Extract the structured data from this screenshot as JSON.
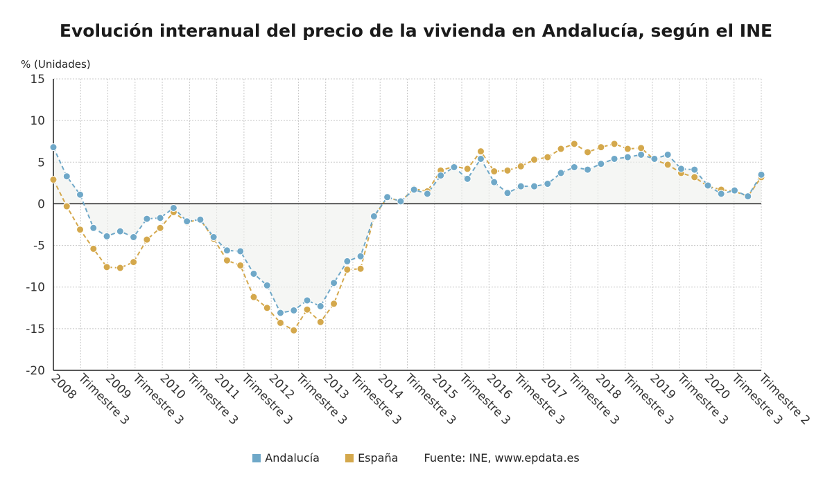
{
  "chart_data": {
    "type": "line",
    "title": "Evolución interanual del precio de la vivienda en Andalucía, según el INE",
    "ylabel": "% (Unidades)",
    "ylim": [
      -20,
      15
    ],
    "yticks": [
      15,
      10,
      5,
      0,
      -5,
      -10,
      -15,
      -20
    ],
    "grid": true,
    "legend_position": "bottom",
    "source": "Fuente: INE, www.epdata.es",
    "x_tick_labels": [
      "2008",
      "Trimestre 3",
      "2009",
      "Trimestre 3",
      "2010",
      "Trimestre 3",
      "2011",
      "Trimestre 3",
      "2012",
      "Trimestre 3",
      "2013",
      "Trimestre 3",
      "2014",
      "Trimestre 3",
      "2015",
      "Trimestre 3",
      "2016",
      "Trimestre 3",
      "2017",
      "Trimestre 3",
      "2018",
      "Trimestre 3",
      "2019",
      "Trimestre 3",
      "2020",
      "Trimestre 3",
      "Trimestre 2"
    ],
    "series": [
      {
        "name": "Andalucía",
        "color": "#6fa8c8",
        "values": [
          6.8,
          3.3,
          1.1,
          -2.9,
          -3.9,
          -3.3,
          -4.0,
          -1.8,
          -1.7,
          -0.5,
          -2.1,
          -1.9,
          -4.0,
          -5.6,
          -5.7,
          -8.4,
          -9.8,
          -13.1,
          -12.8,
          -11.6,
          -12.3,
          -9.5,
          -6.9,
          -6.3,
          -1.5,
          0.8,
          0.3,
          1.7,
          1.2,
          3.4,
          4.4,
          3.0,
          5.4,
          2.6,
          1.3,
          2.1,
          2.1,
          2.4,
          3.7,
          4.4,
          4.1,
          4.8,
          5.4,
          5.6,
          5.9,
          5.4,
          5.9,
          4.2,
          4.1,
          2.2,
          1.2,
          1.6,
          0.9,
          3.5
        ],
        "trailing": 3.5
      },
      {
        "name": "España",
        "color": "#d4a84c",
        "values": [
          2.9,
          -0.3,
          -3.1,
          -5.4,
          -7.6,
          -7.7,
          -7.0,
          -4.3,
          -2.9,
          -1.0,
          -2.2,
          -1.9,
          -4.2,
          -6.8,
          -7.4,
          -11.2,
          -12.5,
          -14.3,
          -15.2,
          -12.7,
          -14.2,
          -12.0,
          -7.9,
          -7.8,
          -1.6,
          0.8,
          0.3,
          1.8,
          1.5,
          4.0,
          4.5,
          4.2,
          6.3,
          3.9,
          4.0,
          4.5,
          5.3,
          5.6,
          6.6,
          7.2,
          6.2,
          6.8,
          7.2,
          6.6,
          6.7,
          5.3,
          4.7,
          3.7,
          3.2,
          2.1,
          1.7,
          1.5,
          0.9,
          3.2
        ]
      }
    ]
  }
}
